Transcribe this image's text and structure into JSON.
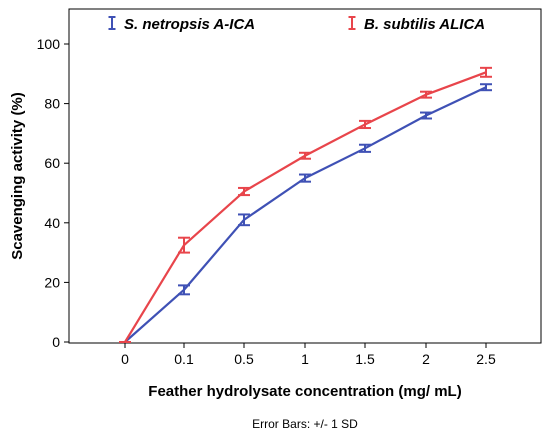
{
  "chart_data": {
    "type": "line",
    "categories": [
      "0",
      "0.1",
      "0.5",
      "1",
      "1.5",
      "2",
      "2.5"
    ],
    "series": [
      {
        "name": "S. netropsis A-ICA",
        "color": "#3f51b5",
        "values": [
          0,
          17.5,
          41,
          55,
          65,
          76,
          85.5
        ],
        "errors": [
          0,
          1.5,
          1.8,
          1.2,
          1.2,
          1.0,
          1.0
        ]
      },
      {
        "name": "B. subtilis ALICA",
        "color": "#e8454b",
        "values": [
          0,
          32.5,
          50.5,
          62.5,
          73,
          83,
          90.5
        ],
        "errors": [
          0,
          2.5,
          1.2,
          1.0,
          1.2,
          1.0,
          1.5
        ]
      }
    ],
    "ylim": [
      0,
      100
    ],
    "yticks": [
      "0",
      "20",
      "40",
      "60",
      "80",
      "100"
    ],
    "xlabel": "Feather hydrolysate concentration (mg/ mL)",
    "ylabel": "Scavenging activity (%)",
    "note": "Error Bars: +/- 1 SD",
    "legend_position": "top",
    "grid": false
  }
}
